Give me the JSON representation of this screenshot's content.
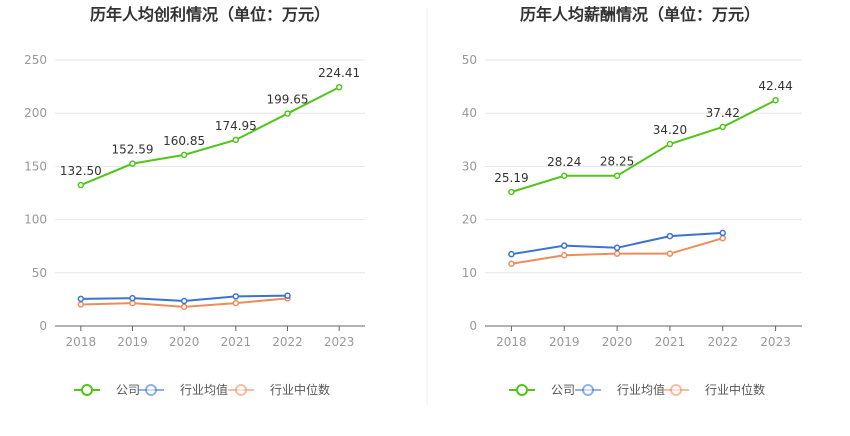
{
  "chart_data": [
    {
      "type": "line",
      "title": "历年人均创利情况（单位：万元）",
      "categories": [
        "2018",
        "2019",
        "2020",
        "2021",
        "2022",
        "2023"
      ],
      "ylim": [
        0,
        250
      ],
      "yticks": [
        "0",
        "50",
        "100",
        "150",
        "200",
        "250"
      ],
      "grid": true,
      "legend_position": "bottom",
      "series": [
        {
          "name": "公司",
          "color": "#52c41a",
          "values": [
            132.5,
            152.59,
            160.85,
            174.95,
            199.65,
            224.41
          ],
          "labels": [
            "132.50",
            "152.59",
            "160.85",
            "174.95",
            "199.65",
            "224.41"
          ]
        },
        {
          "name": "行业均值",
          "color": "#3b73d1",
          "values": [
            25.5,
            26.2,
            23.5,
            27.8,
            28.5,
            null
          ]
        },
        {
          "name": "行业中位数",
          "color": "#f08c5a",
          "values": [
            20.2,
            21.5,
            18.0,
            21.5,
            26.0,
            null
          ]
        }
      ]
    },
    {
      "type": "line",
      "title": "历年人均薪酬情况（单位：万元）",
      "categories": [
        "2018",
        "2019",
        "2020",
        "2021",
        "2022",
        "2023"
      ],
      "ylim": [
        0,
        50
      ],
      "yticks": [
        "0",
        "10",
        "20",
        "30",
        "40",
        "50"
      ],
      "grid": true,
      "legend_position": "bottom",
      "series": [
        {
          "name": "公司",
          "color": "#52c41a",
          "values": [
            25.19,
            28.24,
            28.25,
            34.2,
            37.42,
            42.44
          ],
          "labels": [
            "25.19",
            "28.24",
            "28.25",
            "34.20",
            "37.42",
            "42.44"
          ]
        },
        {
          "name": "行业均值",
          "color": "#3b73d1",
          "values": [
            13.5,
            15.1,
            14.7,
            16.9,
            17.5,
            null
          ]
        },
        {
          "name": "行业中位数",
          "color": "#f08c5a",
          "values": [
            11.7,
            13.3,
            13.6,
            13.6,
            16.5,
            null
          ]
        }
      ]
    }
  ]
}
